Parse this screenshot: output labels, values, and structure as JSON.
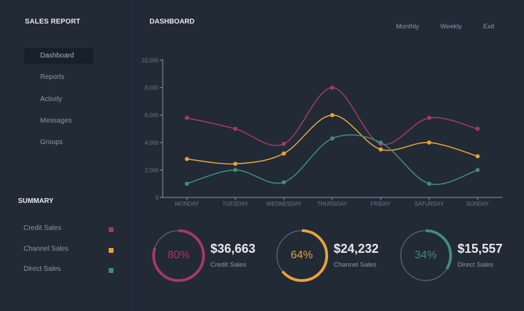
{
  "sidebar": {
    "brand": "SALES REPORT",
    "nav": [
      "Dashboard",
      "Reports",
      "Activity",
      "Messages",
      "Groups"
    ],
    "active": "Dashboard",
    "summary_title": "SUMMARY",
    "legend": [
      {
        "label": "Credit Sales",
        "color": "#a43a62"
      },
      {
        "label": "Channel Sales",
        "color": "#e9a23b"
      },
      {
        "label": "Direct Sales",
        "color": "#3f8e75"
      }
    ]
  },
  "header": {
    "title": "DASHBOARD",
    "links": [
      "Monthly",
      "Weekly",
      "Exit"
    ]
  },
  "chart_data": {
    "type": "line",
    "categories": [
      "MONDAY",
      "TUESDAY",
      "WEDNESDAY",
      "THURSDAY",
      "FRIDAY",
      "SATURDAY",
      "SUNDAY"
    ],
    "yticks": [
      "0",
      "2,000",
      "4,000",
      "6,000",
      "8,000",
      "10,000"
    ],
    "ylim": [
      0,
      10000
    ],
    "series": [
      {
        "name": "Credit Sales",
        "color": "#a43a62",
        "values": [
          5800,
          5000,
          3900,
          8000,
          3900,
          5800,
          5000
        ]
      },
      {
        "name": "Channel Sales",
        "color": "#e9a23b",
        "values": [
          2800,
          2450,
          3200,
          6000,
          3500,
          4000,
          3000
        ]
      },
      {
        "name": "Direct Sales",
        "color": "#3f8e75",
        "values": [
          1000,
          2000,
          1100,
          4300,
          4000,
          1000,
          2000
        ]
      }
    ]
  },
  "stats": [
    {
      "pct": "80%",
      "fraction": 0.8,
      "amount": "$36,663",
      "label": "Credit Sales",
      "color": "#a43a62"
    },
    {
      "pct": "64%",
      "fraction": 0.64,
      "amount": "$24,232",
      "label": "Channel Sales",
      "color": "#e9a23b"
    },
    {
      "pct": "34%",
      "fraction": 0.34,
      "amount": "$15,557",
      "label": "Direct Sales",
      "color": "#3f8e75"
    }
  ]
}
